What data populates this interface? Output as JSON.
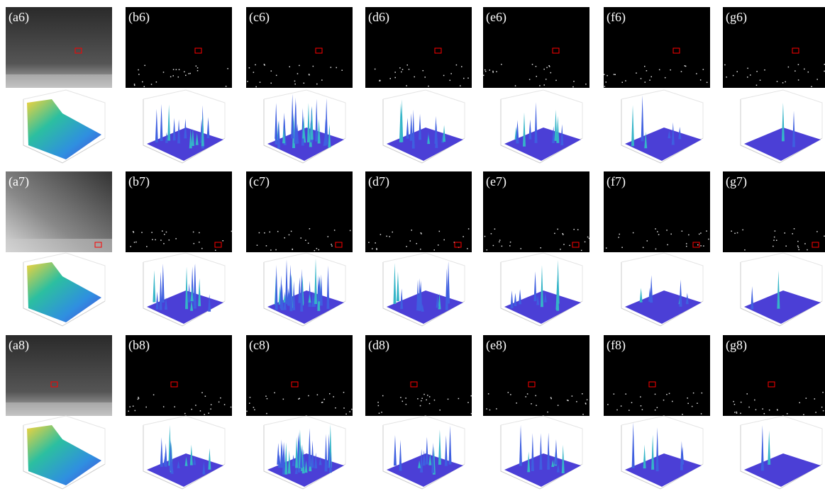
{
  "panels": [
    [
      "(a6)",
      "(b6)",
      "(c6)",
      "(d6)",
      "(e6)",
      "(f6)",
      "(g6)"
    ],
    [
      "(a7)",
      "(b7)",
      "(c7)",
      "(d7)",
      "(e7)",
      "(f7)",
      "(g7)"
    ],
    [
      "(a8)",
      "(b8)",
      "(c8)",
      "(d8)",
      "(e8)",
      "(f8)",
      "(g8)"
    ]
  ]
}
